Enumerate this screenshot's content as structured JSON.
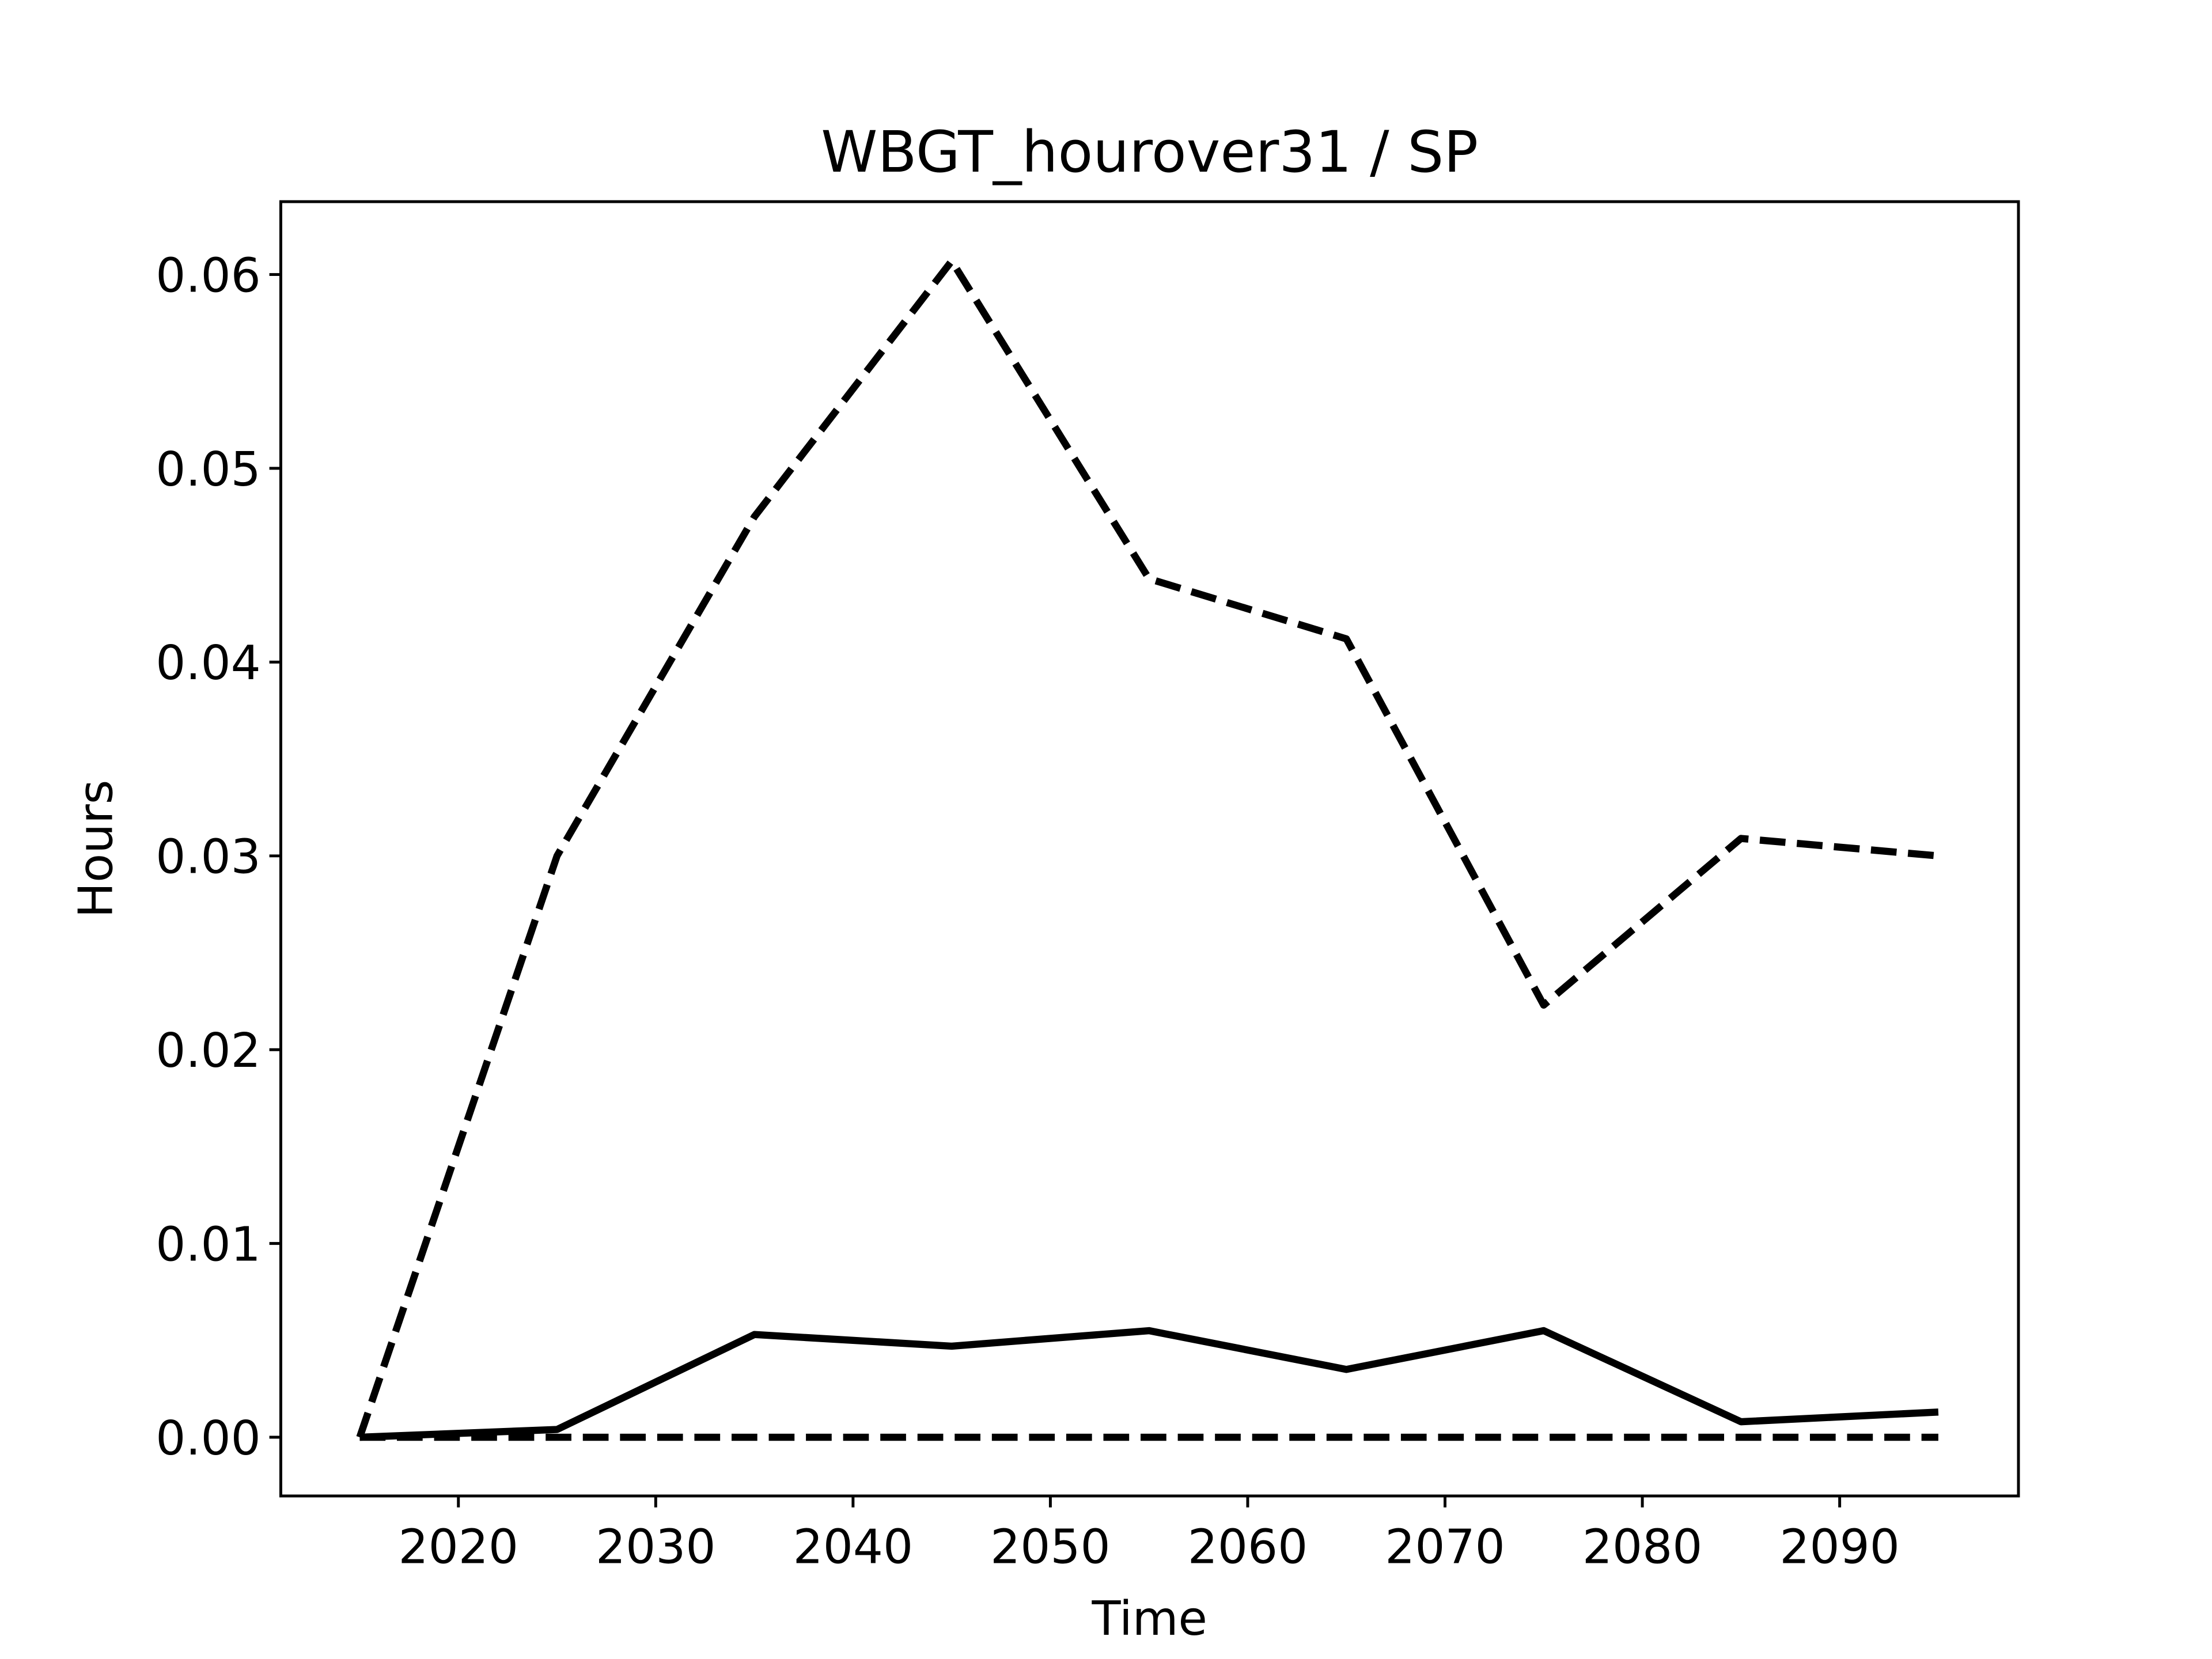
{
  "chart_data": {
    "type": "line",
    "title": "WBGT_hourover31 / SP",
    "xlabel": "Time",
    "ylabel": "Hours",
    "x": [
      2015,
      2025,
      2035,
      2045,
      2055,
      2065,
      2075,
      2085,
      2095
    ],
    "series": [
      {
        "color": "#000000",
        "style": "dashed",
        "values": [
          0,
          0.03,
          0.0475,
          0.0607,
          0.0443,
          0.0412,
          0.0223,
          0.0309,
          0.03
        ]
      },
      {
        "color": "#000000",
        "style": "solid",
        "values": [
          0,
          0.0004,
          0.0053,
          0.0047,
          0.0055,
          0.0035,
          0.0055,
          0.0008,
          0.0013
        ]
      },
      {
        "color": "#000000",
        "style": "dashed",
        "values": [
          0,
          0,
          0,
          0,
          0,
          0,
          0,
          0,
          0
        ]
      }
    ],
    "xlim": [
      2011.0,
      2099.06
    ],
    "ylim": [
      -0.00303,
      0.06376
    ],
    "xticks": [
      2020,
      2030,
      2040,
      2050,
      2060,
      2070,
      2080,
      2090
    ],
    "yticks": [
      {
        "value": 0,
        "label": "0.00"
      },
      0.01,
      0.02,
      0.03,
      0.04,
      0.05,
      0.06
    ],
    "grid": false
  }
}
